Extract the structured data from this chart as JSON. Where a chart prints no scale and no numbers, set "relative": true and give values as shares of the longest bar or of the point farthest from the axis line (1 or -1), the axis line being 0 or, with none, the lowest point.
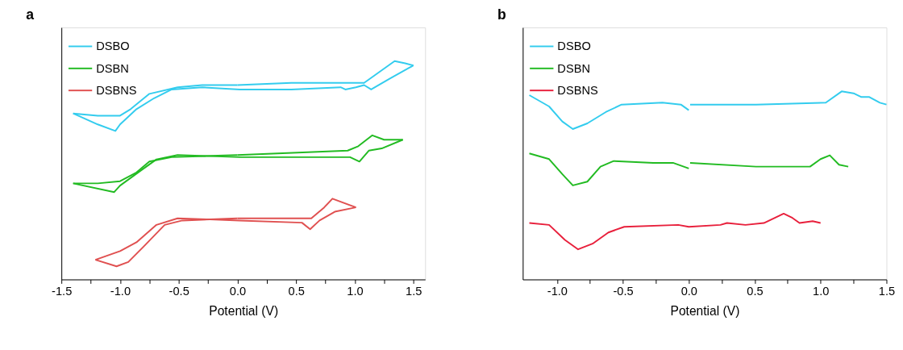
{
  "chart_data": [
    {
      "type": "line",
      "title": "a",
      "xlabel": "Potential (V)",
      "relative": true,
      "legend": "top left",
      "tick_labels": "x",
      "xlim": [
        -1.5,
        1.6
      ],
      "xticks": [
        {
          "value": -1.5,
          "label": "-1.5"
        },
        {
          "value": -1.25,
          "label": null
        },
        {
          "value": -1.0,
          "label": "-1.0"
        },
        {
          "value": -0.75,
          "label": null
        },
        {
          "value": -0.5,
          "label": "-0.5"
        },
        {
          "value": -0.25,
          "label": null
        },
        {
          "value": 0.0,
          "label": "0.0"
        },
        {
          "value": 0.25,
          "label": null
        },
        {
          "value": 0.5,
          "label": "0.5"
        },
        {
          "value": 0.75,
          "label": null
        },
        {
          "value": 1.0,
          "label": "1.0"
        },
        {
          "value": 1.25,
          "label": null
        },
        {
          "value": 1.5,
          "label": "1.5"
        }
      ],
      "series": [
        {
          "name": "DSBO",
          "color": "#33ccee",
          "x": [
            0.0,
            0.46,
            1.08,
            1.21,
            1.34,
            1.43,
            1.5,
            null,
            1.5,
            1.3,
            1.14,
            1.08,
            1.01,
            0.92,
            0.88,
            0.46,
            0.02,
            -0.3,
            -0.56,
            -0.71,
            -0.86,
            -1.0,
            -1.04,
            -1.19,
            -1.4,
            null,
            -1.4,
            -1.19,
            -1.0,
            -0.91,
            -0.75,
            -0.51,
            -0.3,
            0.0
          ],
          "values": [
            0.89,
            0.9,
            0.9,
            0.95,
            1.0,
            0.99,
            0.98,
            null,
            0.98,
            0.92,
            0.87,
            0.89,
            0.88,
            0.87,
            0.88,
            0.87,
            0.87,
            0.88,
            0.87,
            0.83,
            0.78,
            0.71,
            0.68,
            0.71,
            0.76,
            null,
            0.76,
            0.75,
            0.75,
            0.78,
            0.85,
            0.88,
            0.89,
            0.89
          ]
        },
        {
          "name": "DSBN",
          "color": "#22bb22",
          "x": [
            0.0,
            0.94,
            1.03,
            1.15,
            1.25,
            1.41,
            null,
            1.41,
            1.23,
            1.12,
            1.04,
            0.96,
            0.02,
            -0.51,
            -0.69,
            -0.82,
            -1.0,
            -1.05,
            -1.4,
            null,
            -1.4,
            -1.19,
            -1.0,
            -0.86,
            -0.75,
            -0.56,
            0.0
          ],
          "values": [
            0.57,
            0.59,
            0.61,
            0.66,
            0.64,
            0.64,
            null,
            0.64,
            0.6,
            0.59,
            0.54,
            0.56,
            0.56,
            0.57,
            0.55,
            0.5,
            0.43,
            0.4,
            0.44,
            null,
            0.44,
            0.44,
            0.45,
            0.49,
            0.54,
            0.56,
            0.57
          ]
        },
        {
          "name": "DSBNS",
          "color": "#e05050",
          "x": [
            0.0,
            0.63,
            0.74,
            0.81,
            1.01,
            null,
            1.01,
            0.83,
            0.7,
            0.62,
            0.55,
            0.02,
            -0.51,
            -0.69,
            -0.86,
            -1.0,
            -1.21,
            null,
            -1.21,
            -1.03,
            -0.93,
            -0.8,
            -0.62,
            -0.47,
            0.0
          ],
          "values": [
            0.28,
            0.28,
            0.33,
            0.37,
            0.33,
            null,
            0.33,
            0.31,
            0.27,
            0.23,
            0.26,
            0.27,
            0.28,
            0.25,
            0.17,
            0.13,
            0.09,
            null,
            0.09,
            0.06,
            0.08,
            0.15,
            0.25,
            0.27,
            0.28
          ]
        }
      ]
    },
    {
      "type": "line",
      "title": "b",
      "xlabel": "Potential (V)",
      "relative": true,
      "legend": "top left",
      "tick_labels": "x",
      "xlim": [
        -1.26,
        1.5
      ],
      "xticks": [
        {
          "value": -1.0,
          "label": "-1.0"
        },
        {
          "value": -0.75,
          "label": null
        },
        {
          "value": -0.5,
          "label": "-0.5"
        },
        {
          "value": -0.25,
          "label": null
        },
        {
          "value": 0.0,
          "label": "0.0"
        },
        {
          "value": 0.25,
          "label": null
        },
        {
          "value": 0.5,
          "label": "0.5"
        },
        {
          "value": 0.75,
          "label": null
        },
        {
          "value": 1.0,
          "label": "1.0"
        },
        {
          "value": 1.25,
          "label": null
        },
        {
          "value": 1.5,
          "label": "1.5"
        }
      ],
      "series": [
        {
          "name": "DSBO",
          "color": "#33ccee",
          "x": [
            -1.21,
            -1.06,
            -0.96,
            -0.88,
            -0.77,
            -0.63,
            -0.51,
            -0.2,
            -0.06,
            0.0,
            null,
            0.01,
            0.51,
            1.04,
            1.16,
            1.25,
            1.31,
            1.37,
            1.45,
            1.5
          ],
          "values": [
            0.98,
            0.92,
            0.84,
            0.8,
            0.83,
            0.89,
            0.93,
            0.94,
            0.93,
            0.9,
            null,
            0.93,
            0.93,
            0.94,
            1.0,
            0.99,
            0.97,
            0.97,
            0.94,
            0.93
          ]
        },
        {
          "name": "DSBN",
          "color": "#22bb22",
          "x": [
            -1.21,
            -1.06,
            -0.96,
            -0.88,
            -0.77,
            -0.67,
            -0.57,
            -0.27,
            -0.12,
            0.0,
            null,
            0.01,
            0.51,
            0.92,
            1.0,
            1.07,
            1.14,
            1.21
          ],
          "values": [
            0.67,
            0.64,
            0.56,
            0.5,
            0.52,
            0.6,
            0.63,
            0.62,
            0.62,
            0.59,
            null,
            0.62,
            0.6,
            0.6,
            0.64,
            0.66,
            0.61,
            0.6
          ]
        },
        {
          "name": "DSBNS",
          "color": "#e8203c",
          "x": [
            -1.21,
            -1.06,
            -0.94,
            -0.84,
            -0.73,
            -0.61,
            -0.49,
            -0.08,
            0.0,
            0.24,
            0.29,
            0.43,
            0.57,
            0.72,
            0.78,
            0.84,
            0.94,
            1.0
          ],
          "values": [
            0.3,
            0.29,
            0.21,
            0.16,
            0.19,
            0.25,
            0.28,
            0.29,
            0.28,
            0.29,
            0.3,
            0.29,
            0.3,
            0.35,
            0.33,
            0.3,
            0.31,
            0.3
          ]
        }
      ]
    }
  ]
}
